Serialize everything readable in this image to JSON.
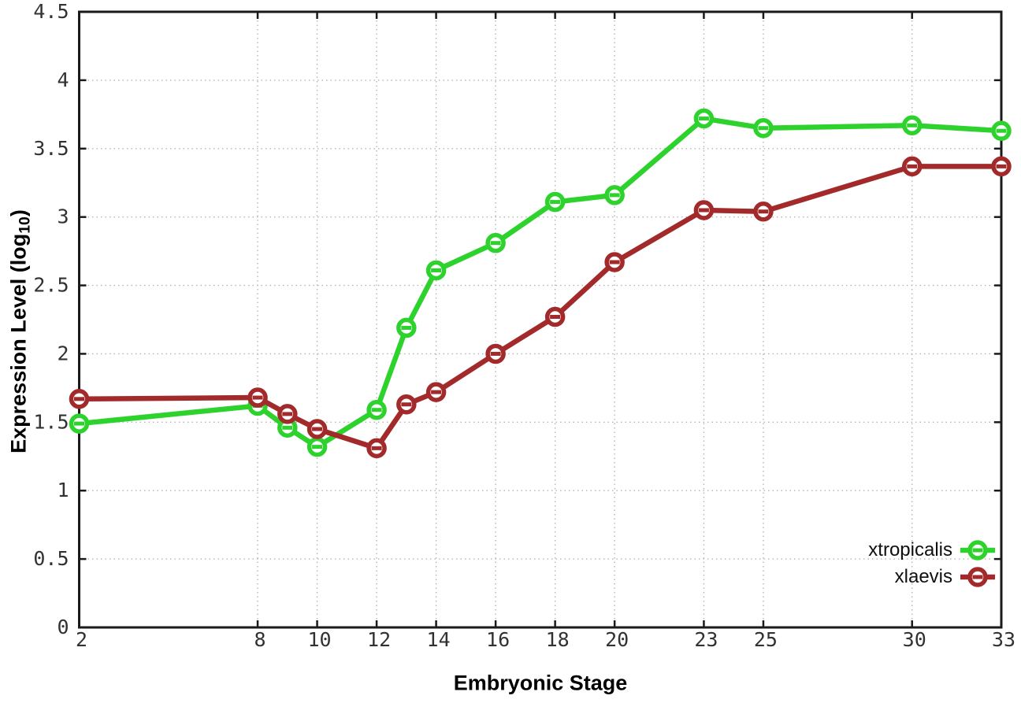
{
  "chart_data": {
    "type": "line",
    "title": "",
    "xlabel": "Embryonic Stage",
    "ylabel": "Expression Level (log10)",
    "ylabel_parts": {
      "prefix": "Expression Level (log",
      "sub": "10",
      "suffix": ")"
    },
    "xlim": [
      2,
      33
    ],
    "ylim": [
      0,
      4.5
    ],
    "grid": true,
    "legend_position": "bottom-right",
    "xticks": [
      2,
      8,
      10,
      12,
      14,
      16,
      18,
      20,
      23,
      25,
      30,
      33
    ],
    "ytick_labels": [
      "0",
      "0.5",
      "1",
      "1.5",
      "2",
      "2.5",
      "3",
      "3.5",
      "4",
      "4.5"
    ],
    "yticks": [
      0,
      0.5,
      1,
      1.5,
      2,
      2.5,
      3,
      3.5,
      4,
      4.5
    ],
    "x": [
      2,
      8,
      9,
      10,
      12,
      13,
      14,
      16,
      18,
      20,
      23,
      25,
      30,
      33
    ],
    "series": [
      {
        "name": "xtropicalis",
        "color": "#2dd22d",
        "values": [
          1.49,
          1.62,
          1.46,
          1.32,
          1.59,
          2.19,
          2.61,
          2.81,
          3.11,
          3.16,
          3.72,
          3.65,
          3.67,
          3.63
        ]
      },
      {
        "name": "xlaevis",
        "color": "#a32a2a",
        "values": [
          1.67,
          1.68,
          1.56,
          1.45,
          1.31,
          1.63,
          1.72,
          2.0,
          2.27,
          2.67,
          3.05,
          3.04,
          3.37,
          3.37
        ]
      }
    ],
    "style": {
      "grid_color": "#b4b4b4",
      "border_color": "#1a1a1a",
      "tick_label_color": "#323232",
      "background": "#ffffff"
    }
  }
}
